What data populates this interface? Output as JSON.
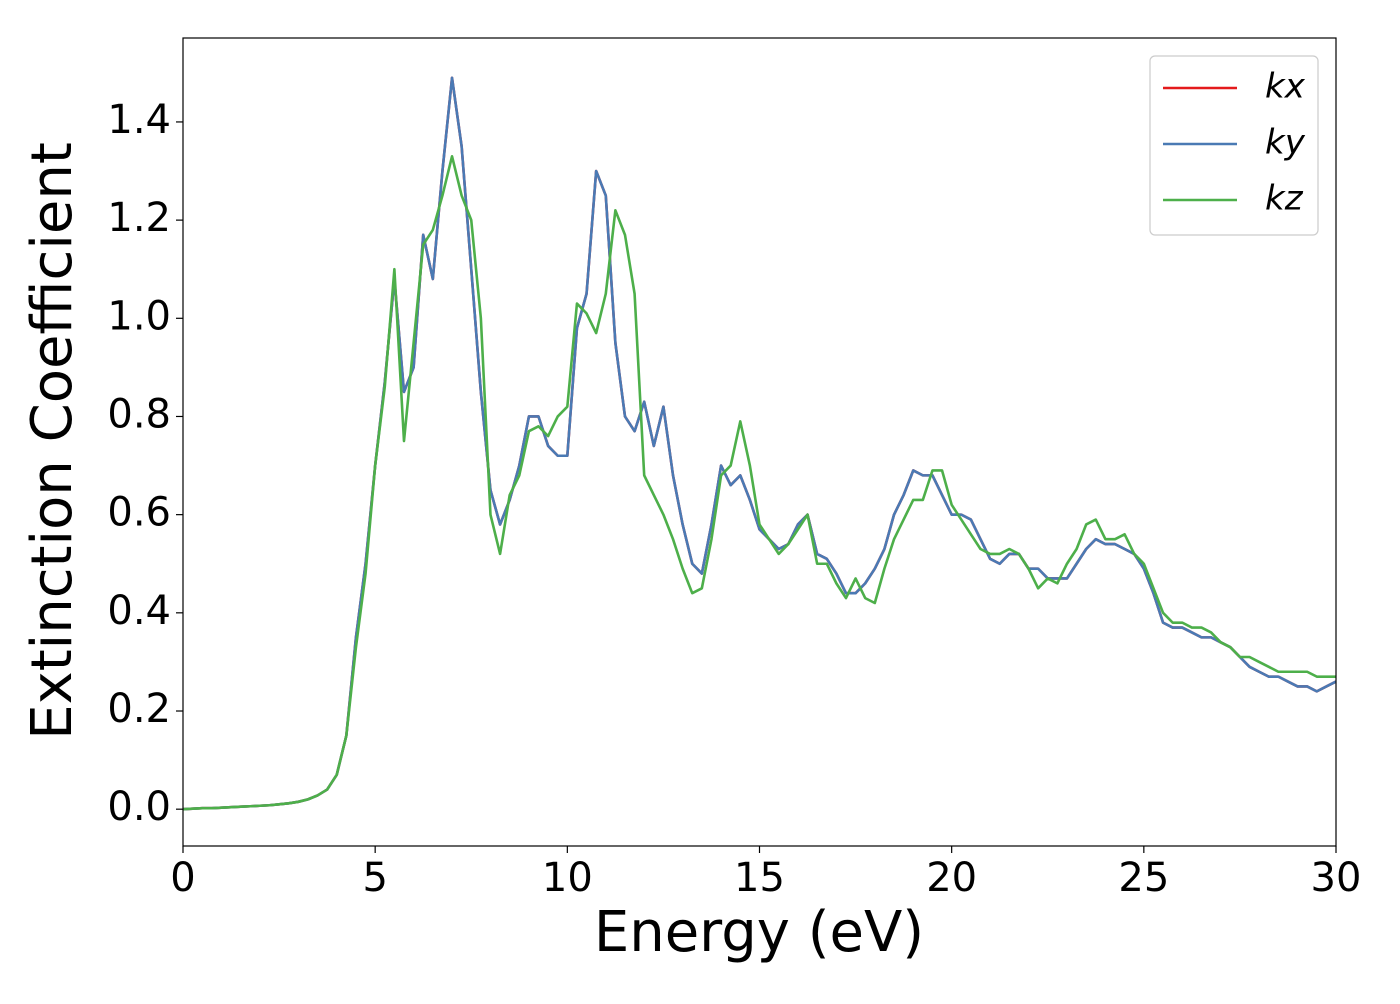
{
  "chart_data": {
    "type": "line",
    "xlabel": "Energy (eV)",
    "ylabel": "Extinction Coefficient",
    "x": [
      0,
      0.25,
      0.5,
      0.75,
      1,
      1.25,
      1.5,
      1.75,
      2,
      2.25,
      2.5,
      2.75,
      3,
      3.25,
      3.5,
      3.75,
      4,
      4.25,
      4.5,
      4.75,
      5,
      5.25,
      5.5,
      5.75,
      6,
      6.25,
      6.5,
      6.75,
      7,
      7.25,
      7.5,
      7.75,
      8,
      8.25,
      8.5,
      8.75,
      9,
      9.25,
      9.5,
      9.75,
      10,
      10.25,
      10.5,
      10.75,
      11,
      11.25,
      11.5,
      11.75,
      12,
      12.25,
      12.5,
      12.75,
      13,
      13.25,
      13.5,
      13.75,
      14,
      14.25,
      14.5,
      14.75,
      15,
      15.25,
      15.5,
      15.75,
      16,
      16.25,
      16.5,
      16.75,
      17,
      17.25,
      17.5,
      17.75,
      18,
      18.25,
      18.5,
      18.75,
      19,
      19.25,
      19.5,
      19.75,
      20,
      20.25,
      20.5,
      20.75,
      21,
      21.25,
      21.5,
      21.75,
      22,
      22.25,
      22.5,
      22.75,
      23,
      23.25,
      23.5,
      23.75,
      24,
      24.25,
      24.5,
      24.75,
      25,
      25.25,
      25.5,
      25.75,
      26,
      26.25,
      26.5,
      26.75,
      27,
      27.25,
      27.5,
      27.75,
      28,
      28.25,
      28.5,
      28.75,
      29,
      29.25,
      29.5,
      29.75,
      30
    ],
    "series": [
      {
        "name": "kx",
        "color": "#e41a1c",
        "values": [
          0,
          0.001,
          0.002,
          0.002,
          0.003,
          0.004,
          0.005,
          0.006,
          0.007,
          0.008,
          0.01,
          0.012,
          0.015,
          0.02,
          0.028,
          0.04,
          0.07,
          0.15,
          0.35,
          0.5,
          0.7,
          0.87,
          1.08,
          0.85,
          0.9,
          1.17,
          1.08,
          1.3,
          1.49,
          1.35,
          1.1,
          0.85,
          0.65,
          0.58,
          0.63,
          0.7,
          0.8,
          0.8,
          0.74,
          0.72,
          0.72,
          0.98,
          1.05,
          1.3,
          1.25,
          0.95,
          0.8,
          0.77,
          0.83,
          0.74,
          0.82,
          0.68,
          0.58,
          0.5,
          0.48,
          0.58,
          0.7,
          0.66,
          0.68,
          0.63,
          0.57,
          0.55,
          0.53,
          0.54,
          0.58,
          0.6,
          0.52,
          0.51,
          0.48,
          0.44,
          0.44,
          0.46,
          0.49,
          0.53,
          0.6,
          0.64,
          0.69,
          0.68,
          0.68,
          0.64,
          0.6,
          0.6,
          0.59,
          0.55,
          0.51,
          0.5,
          0.52,
          0.52,
          0.49,
          0.49,
          0.47,
          0.47,
          0.47,
          0.5,
          0.53,
          0.55,
          0.54,
          0.54,
          0.53,
          0.52,
          0.49,
          0.44,
          0.38,
          0.37,
          0.37,
          0.36,
          0.35,
          0.35,
          0.34,
          0.33,
          0.31,
          0.29,
          0.28,
          0.27,
          0.27,
          0.26,
          0.25,
          0.25,
          0.24,
          0.25,
          0.26
        ]
      },
      {
        "name": "ky",
        "color": "#4a7ab4",
        "values": [
          0,
          0.001,
          0.002,
          0.002,
          0.003,
          0.004,
          0.005,
          0.006,
          0.007,
          0.008,
          0.01,
          0.012,
          0.015,
          0.02,
          0.028,
          0.04,
          0.07,
          0.15,
          0.35,
          0.5,
          0.7,
          0.87,
          1.08,
          0.85,
          0.9,
          1.17,
          1.08,
          1.3,
          1.49,
          1.35,
          1.1,
          0.85,
          0.65,
          0.58,
          0.63,
          0.7,
          0.8,
          0.8,
          0.74,
          0.72,
          0.72,
          0.98,
          1.05,
          1.3,
          1.25,
          0.95,
          0.8,
          0.77,
          0.83,
          0.74,
          0.82,
          0.68,
          0.58,
          0.5,
          0.48,
          0.58,
          0.7,
          0.66,
          0.68,
          0.63,
          0.57,
          0.55,
          0.53,
          0.54,
          0.58,
          0.6,
          0.52,
          0.51,
          0.48,
          0.44,
          0.44,
          0.46,
          0.49,
          0.53,
          0.6,
          0.64,
          0.69,
          0.68,
          0.68,
          0.64,
          0.6,
          0.6,
          0.59,
          0.55,
          0.51,
          0.5,
          0.52,
          0.52,
          0.49,
          0.49,
          0.47,
          0.47,
          0.47,
          0.5,
          0.53,
          0.55,
          0.54,
          0.54,
          0.53,
          0.52,
          0.49,
          0.44,
          0.38,
          0.37,
          0.37,
          0.36,
          0.35,
          0.35,
          0.34,
          0.33,
          0.31,
          0.29,
          0.28,
          0.27,
          0.27,
          0.26,
          0.25,
          0.25,
          0.24,
          0.25,
          0.26
        ]
      },
      {
        "name": "kz",
        "color": "#4daf4a",
        "values": [
          0,
          0.001,
          0.002,
          0.002,
          0.003,
          0.004,
          0.005,
          0.006,
          0.007,
          0.008,
          0.01,
          0.012,
          0.015,
          0.02,
          0.028,
          0.04,
          0.07,
          0.15,
          0.33,
          0.48,
          0.7,
          0.86,
          1.1,
          0.75,
          0.95,
          1.15,
          1.18,
          1.25,
          1.33,
          1.25,
          1.2,
          1.0,
          0.6,
          0.52,
          0.64,
          0.68,
          0.77,
          0.78,
          0.76,
          0.8,
          0.82,
          1.03,
          1.01,
          0.97,
          1.05,
          1.22,
          1.17,
          1.05,
          0.68,
          0.64,
          0.6,
          0.55,
          0.49,
          0.44,
          0.45,
          0.55,
          0.68,
          0.7,
          0.79,
          0.7,
          0.58,
          0.55,
          0.52,
          0.54,
          0.57,
          0.6,
          0.5,
          0.5,
          0.46,
          0.43,
          0.47,
          0.43,
          0.42,
          0.49,
          0.55,
          0.59,
          0.63,
          0.63,
          0.69,
          0.69,
          0.62,
          0.59,
          0.56,
          0.53,
          0.52,
          0.52,
          0.53,
          0.52,
          0.49,
          0.45,
          0.47,
          0.46,
          0.5,
          0.53,
          0.58,
          0.59,
          0.55,
          0.55,
          0.56,
          0.52,
          0.5,
          0.45,
          0.4,
          0.38,
          0.38,
          0.37,
          0.37,
          0.36,
          0.34,
          0.33,
          0.31,
          0.31,
          0.3,
          0.29,
          0.28,
          0.28,
          0.28,
          0.28,
          0.27,
          0.27,
          0.27
        ]
      }
    ],
    "xlim": [
      0,
      30
    ],
    "xticks": [
      0,
      5,
      10,
      15,
      20,
      25,
      30
    ],
    "ylim": [
      -0.075,
      1.571
    ],
    "yticks": [
      {
        "value": 0,
        "label": "0.0"
      },
      0.2,
      0.4,
      0.6,
      0.8,
      {
        "value": 1,
        "label": "1.0"
      },
      1.2,
      1.4
    ],
    "grid": false,
    "legend": "upper right"
  }
}
